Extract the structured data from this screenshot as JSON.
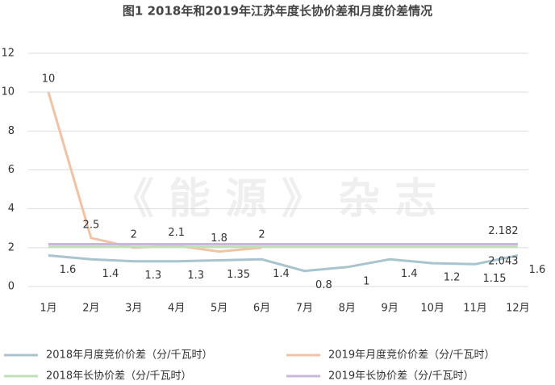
{
  "chart_data": {
    "type": "line",
    "title": "图1 2018年和2019年江苏年度长协价差和月度价差情况",
    "watermark": "《 能 源 》 杂 志",
    "categories": [
      "1月",
      "2月",
      "3月",
      "4月",
      "5月",
      "6月",
      "7月",
      "8月",
      "9月",
      "10月",
      "11月",
      "12月"
    ],
    "ylim": [
      0,
      12
    ],
    "yticks": [
      0,
      2,
      4,
      6,
      8,
      10,
      12
    ],
    "grid": true,
    "series": [
      {
        "name": "2018年月度竞价价差（分/千瓦时）",
        "color": "#a9c4cf",
        "data_labels": "all",
        "label_side": "below",
        "values": [
          1.6,
          1.4,
          1.3,
          1.3,
          1.35,
          1.4,
          0.8,
          1,
          1.4,
          1.2,
          1.15,
          1.6
        ]
      },
      {
        "name": "2019年月度竞价价差（分/千瓦时）",
        "color": "#f2c2a4",
        "data_labels": "all",
        "label_side": "above",
        "values": [
          10,
          2.5,
          2,
          2.1,
          1.8,
          2,
          null,
          null,
          null,
          null,
          null,
          null
        ]
      },
      {
        "name": "2018年长协价差（分/千瓦时）",
        "color": "#bfe0b6",
        "data_labels": "last",
        "label_side": "below",
        "values": [
          2.043,
          2.043,
          2.043,
          2.043,
          2.043,
          2.043,
          2.043,
          2.043,
          2.043,
          2.043,
          2.043,
          2.043
        ]
      },
      {
        "name": "2019年长协价差（分/千瓦时）",
        "color": "#c9b8da",
        "data_labels": "last",
        "label_side": "above",
        "values": [
          2.182,
          2.182,
          2.182,
          2.182,
          2.182,
          2.182,
          2.182,
          2.182,
          2.182,
          2.182,
          2.182,
          2.182
        ]
      }
    ]
  }
}
